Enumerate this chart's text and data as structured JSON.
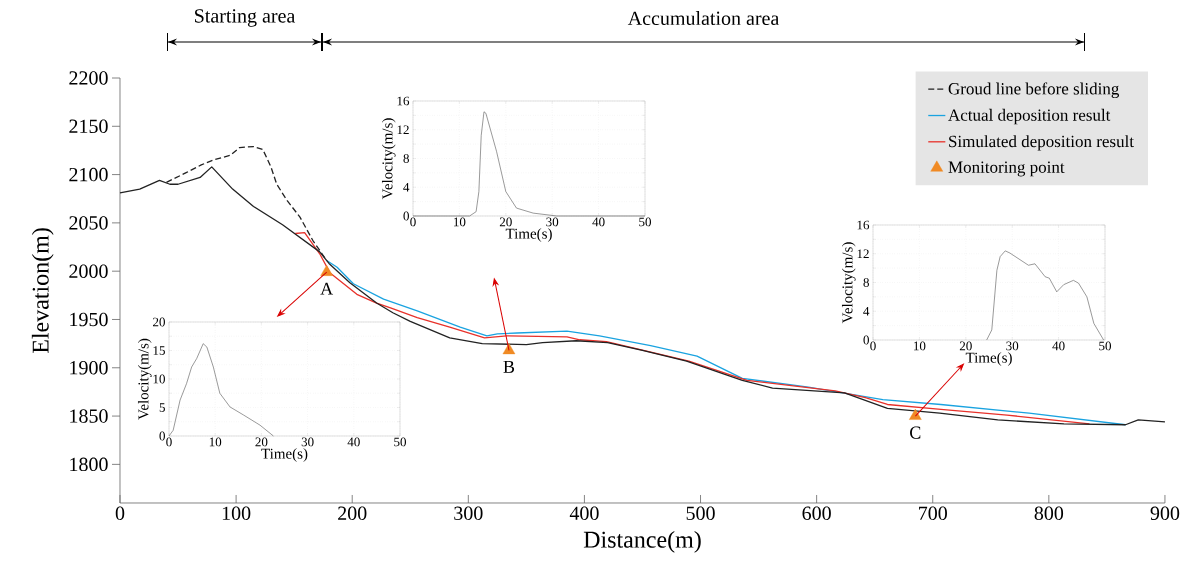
{
  "chart_data": [
    {
      "type": "line",
      "xlabel": "Distance(m)",
      "ylabel": "Elevation(m)",
      "xlim": [
        0,
        900
      ],
      "ylim": [
        1760,
        2200
      ],
      "xticks": [
        0,
        100,
        200,
        300,
        400,
        500,
        600,
        700,
        800,
        900
      ],
      "yticks": [
        1800,
        1850,
        1900,
        1950,
        2000,
        2050,
        2100,
        2150,
        2200
      ],
      "legend": "top right",
      "series": [
        {
          "name": "Groud line before sliding",
          "color": "#222222",
          "line_style": "dashed",
          "x": [
            40,
            57,
            70,
            80,
            95,
            103,
            115,
            123,
            130,
            135,
            144,
            155,
            166,
            174,
            178
          ],
          "values": [
            2092,
            2102,
            2110,
            2115,
            2120,
            2128,
            2129,
            2126,
            2108,
            2090,
            2073,
            2056,
            2032,
            2018,
            2011
          ]
        },
        {
          "name": "Actual deposition result",
          "color": "#1aa3e0",
          "x": [
            178,
            187,
            201,
            227,
            256,
            293,
            316,
            325,
            342,
            385,
            413,
            457,
            497,
            536,
            593,
            657,
            707,
            783,
            866
          ],
          "values": [
            2011,
            2004,
            1987,
            1971,
            1959,
            1942,
            1933,
            1935,
            1936,
            1938,
            1933,
            1923,
            1912,
            1889,
            1880,
            1867,
            1862,
            1853,
            1841
          ]
        },
        {
          "name": "Simulated deposition result",
          "color": "#e8312a",
          "x": [
            151,
            159,
            172,
            181,
            204,
            221,
            233,
            256,
            284,
            314,
            333,
            385,
            396,
            419,
            490,
            540,
            616,
            642,
            661,
            707,
            764,
            835
          ],
          "values": [
            2039,
            2040,
            2018,
            1998,
            1976,
            1967,
            1962,
            1952,
            1942,
            1931,
            1933,
            1932,
            1929,
            1927,
            1907,
            1887,
            1876,
            1869,
            1862,
            1857,
            1851,
            1842
          ]
        },
        {
          "color": "#222222",
          "x": [
            0,
            17,
            34,
            43,
            50,
            69,
            79,
            97,
            115,
            140,
            172,
            180,
            198,
            221,
            235,
            250,
            284,
            312,
            350,
            364,
            393,
            420,
            450,
            488,
            536,
            562,
            624,
            661,
            706,
            756,
            813,
            866,
            877,
            900
          ],
          "values": [
            2081,
            2085,
            2094,
            2090,
            2090,
            2097,
            2108,
            2085,
            2067,
            2048,
            2020,
            2008,
            1988,
            1967,
            1957,
            1948,
            1931,
            1925,
            1924,
            1926,
            1928,
            1926,
            1918,
            1907,
            1887,
            1879,
            1874,
            1858,
            1853,
            1846,
            1842,
            1841,
            1846,
            1844
          ]
        },
        {
          "name": "Monitoring point",
          "type": "scatter",
          "marker": "triangle",
          "color": "#f08a24",
          "x": [
            178,
            335,
            685
          ],
          "values": [
            1999,
            1918,
            1850
          ]
        }
      ],
      "annotations": [
        {
          "text": "A",
          "x": 178,
          "y": 1999
        },
        {
          "text": "B",
          "x": 335,
          "y": 1918
        },
        {
          "text": "C",
          "x": 685,
          "y": 1850
        },
        "Starting area",
        "Accumulation area"
      ]
    },
    {
      "type": "line",
      "xlabel": "Time(s)",
      "ylabel": "Velocity(m/s)",
      "xlim": [
        0,
        50
      ],
      "ylim": [
        0,
        16
      ],
      "xticks": [
        0,
        10,
        20,
        30,
        40,
        50
      ],
      "yticks": [
        0,
        4,
        8,
        12,
        16
      ],
      "grid": true,
      "color": "#555555",
      "x": [
        0,
        12.2,
        13.6,
        14.2,
        14.7,
        15.3,
        15.7,
        18,
        20,
        22.3,
        25.9,
        31,
        50
      ],
      "values": [
        0,
        0,
        0.6,
        3.4,
        11.2,
        14.5,
        14.3,
        9,
        3.4,
        1.1,
        0.4,
        0,
        0
      ]
    },
    {
      "type": "line",
      "xlabel": "Time(s)",
      "ylabel": "Velocity(m/s)",
      "xlim": [
        0,
        50
      ],
      "ylim": [
        0,
        16
      ],
      "xticks": [
        0,
        10,
        20,
        30,
        40,
        50
      ],
      "yticks": [
        0,
        4,
        8,
        12,
        16
      ],
      "grid": true,
      "color": "#555555",
      "x": [
        24.5,
        25.6,
        26.7,
        27.4,
        28.5,
        29.5,
        33.5,
        34.9,
        36,
        37.1,
        38,
        39.6,
        41.1,
        43.2,
        44.3,
        46.1,
        47.6,
        49.7
      ],
      "values": [
        0,
        1.4,
        9.7,
        11.6,
        12.4,
        12.1,
        10.4,
        10.6,
        9.7,
        8.8,
        8.6,
        6.7,
        7.7,
        8.3,
        7.9,
        6,
        2.3,
        0
      ]
    },
    {
      "type": "line",
      "xlabel": "Time(s)",
      "ylabel": "Velocity(m/s)",
      "xlim": [
        0,
        50
      ],
      "ylim": [
        0,
        20
      ],
      "xticks": [
        0,
        10,
        20,
        30,
        40,
        50
      ],
      "yticks": [
        0,
        5,
        10,
        15,
        20
      ],
      "grid": true,
      "color": "#555555",
      "x": [
        0,
        0.9,
        2.4,
        3.8,
        4.9,
        6,
        7.4,
        8.2,
        9.6,
        11,
        13.2,
        16.1,
        19.7,
        22.6
      ],
      "values": [
        0,
        1,
        6.3,
        9.2,
        12.1,
        13.6,
        16.2,
        15.6,
        12.1,
        7.5,
        5.1,
        3.7,
        1.9,
        0
      ]
    }
  ]
}
